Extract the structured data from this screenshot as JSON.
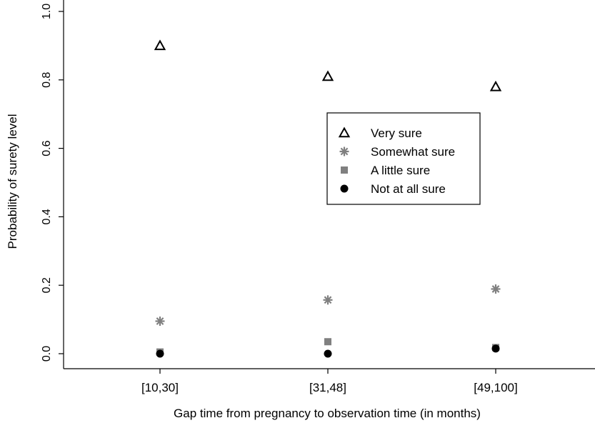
{
  "chart_data": {
    "type": "scatter",
    "title": "",
    "xlabel": "Gap time from pregnancy to observation time (in months)",
    "ylabel": "Probability of surety level",
    "categories": [
      "[10,30]",
      "[31,48]",
      "[49,100]"
    ],
    "ylim": [
      0.0,
      1.0
    ],
    "yticks": [
      "0.0",
      "0.2",
      "0.4",
      "0.6",
      "0.8",
      "1.0"
    ],
    "grid": false,
    "legend_position": "center-right",
    "series": [
      {
        "name": "Very sure",
        "marker": "triangle-open",
        "color": "#000000",
        "values": [
          0.9,
          0.81,
          0.78
        ]
      },
      {
        "name": "Somewhat sure",
        "marker": "asterisk",
        "color": "#808080",
        "values": [
          0.095,
          0.157,
          0.189
        ]
      },
      {
        "name": "A little sure",
        "marker": "square",
        "color": "#808080",
        "values": [
          0.005,
          0.035,
          0.018
        ]
      },
      {
        "name": "Not at all sure",
        "marker": "circle",
        "color": "#000000",
        "values": [
          0.0,
          0.0,
          0.015
        ]
      }
    ]
  }
}
